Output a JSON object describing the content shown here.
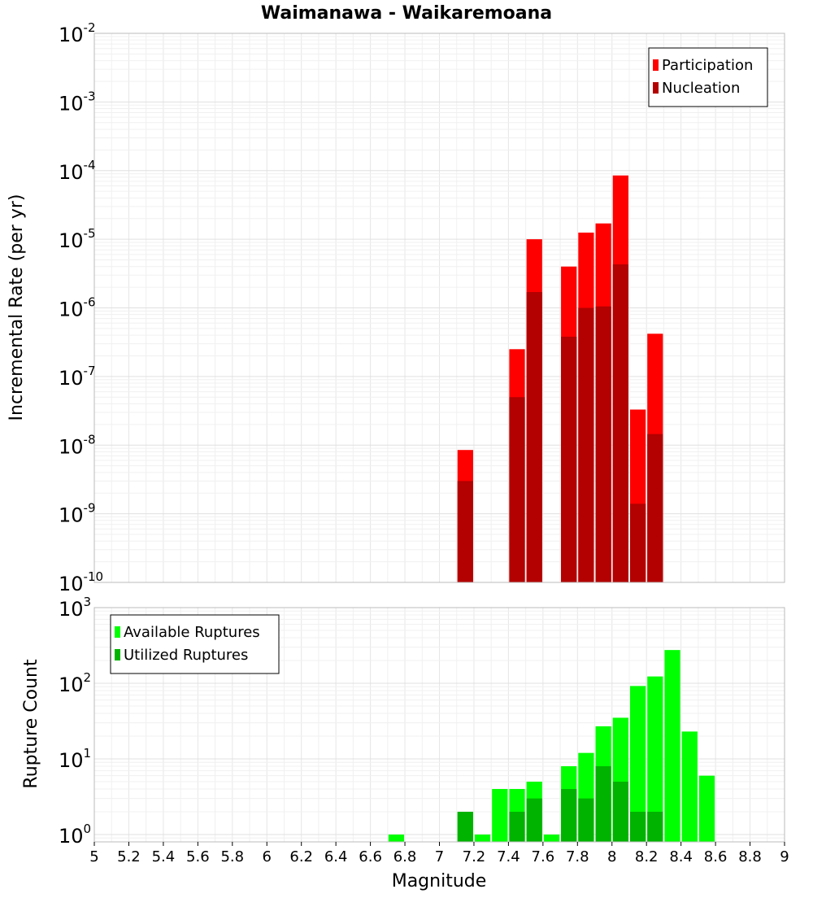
{
  "chart_data": [
    {
      "type": "bar",
      "title": "Waimanawa - Waikaremoana",
      "xlabel": "",
      "ylabel": "Incremental Rate (per yr)",
      "y_scale": "log",
      "ylim": [
        1e-10,
        0.01
      ],
      "xlim": [
        5,
        9
      ],
      "bin_width": 0.1,
      "legend": {
        "placement": "top-right"
      },
      "grid": true,
      "series": [
        {
          "name": "Participation",
          "color": "#ff0000",
          "x": [
            7.15,
            7.45,
            7.55,
            7.75,
            7.85,
            7.95,
            8.05,
            8.15,
            8.25
          ],
          "values": [
            8.5e-09,
            2.5e-07,
            1e-05,
            4e-06,
            1.25e-05,
            1.7e-05,
            8.5e-05,
            3.3e-08,
            4.2e-07
          ]
        },
        {
          "name": "Nucleation",
          "color": "#b30000",
          "x": [
            7.15,
            7.45,
            7.55,
            7.75,
            7.85,
            7.95,
            8.05,
            8.15,
            8.25
          ],
          "values": [
            3e-09,
            5e-08,
            1.7e-06,
            3.8e-07,
            1e-06,
            1.05e-06,
            4.3e-06,
            1.4e-09,
            1.45e-08
          ]
        }
      ]
    },
    {
      "type": "bar",
      "title": "",
      "xlabel": "Magnitude",
      "ylabel": "Rupture Count",
      "y_scale": "log",
      "ylim": [
        0.8,
        1000
      ],
      "xlim": [
        5,
        9
      ],
      "bin_width": 0.1,
      "legend": {
        "placement": "top-left"
      },
      "grid": true,
      "x_ticks": [
        "5",
        "5.2",
        "5.4",
        "5.6",
        "5.8",
        "6",
        "6.2",
        "6.4",
        "6.6",
        "6.8",
        "7",
        "7.2",
        "7.4",
        "7.6",
        "7.8",
        "8",
        "8.2",
        "8.4",
        "8.6",
        "8.8",
        "9"
      ],
      "series": [
        {
          "name": "Available Ruptures",
          "color": "#00ff00",
          "x": [
            6.75,
            7.15,
            7.25,
            7.35,
            7.45,
            7.55,
            7.65,
            7.75,
            7.85,
            7.95,
            8.05,
            8.15,
            8.25,
            8.35,
            8.45,
            8.55
          ],
          "values": [
            1,
            2,
            1,
            4,
            4,
            5,
            1,
            8,
            12,
            27,
            35,
            92,
            123,
            275,
            23,
            6
          ]
        },
        {
          "name": "Utilized Ruptures",
          "color": "#00b300",
          "x": [
            7.15,
            7.45,
            7.55,
            7.75,
            7.85,
            7.95,
            8.05,
            8.15,
            8.25
          ],
          "values": [
            2,
            2,
            3,
            4,
            3,
            8,
            5,
            2,
            2
          ]
        }
      ]
    }
  ],
  "top_y_ticks": [
    {
      "base": "10",
      "exp": "-2"
    },
    {
      "base": "10",
      "exp": "-3"
    },
    {
      "base": "10",
      "exp": "-4"
    },
    {
      "base": "10",
      "exp": "-5"
    },
    {
      "base": "10",
      "exp": "-6"
    },
    {
      "base": "10",
      "exp": "-7"
    },
    {
      "base": "10",
      "exp": "-8"
    },
    {
      "base": "10",
      "exp": "-9"
    },
    {
      "base": "10",
      "exp": "-10"
    }
  ],
  "bottom_y_ticks": [
    {
      "base": "10",
      "exp": "3"
    },
    {
      "base": "10",
      "exp": "2"
    },
    {
      "base": "10",
      "exp": "1"
    },
    {
      "base": "10",
      "exp": "0"
    }
  ]
}
